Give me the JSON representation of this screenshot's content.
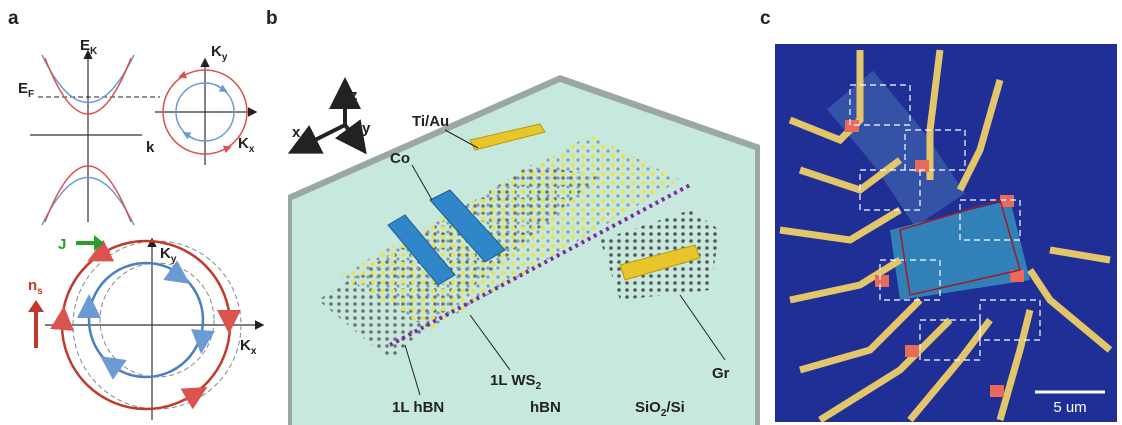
{
  "panel_a": {
    "label": "a",
    "dispersion": {
      "energy_axis": {
        "base": "E",
        "sub": "K"
      },
      "fermi": {
        "base": "E",
        "sub": "F"
      },
      "k_axis": "k"
    },
    "contour": {
      "ky": {
        "base": "K",
        "sub": "y"
      },
      "kx": {
        "base": "K",
        "sub": "x"
      }
    },
    "shifted": {
      "current": "J",
      "spin": {
        "base": "n",
        "sub": "s"
      },
      "ky": {
        "base": "K",
        "sub": "y"
      },
      "kx": {
        "base": "K",
        "sub": "x"
      }
    }
  },
  "panel_b": {
    "label": "b",
    "axes": {
      "x": "x",
      "y": "y",
      "z": "z"
    },
    "labels": {
      "tiau": "Ti/Au",
      "co": "Co",
      "ws2": {
        "base": "1L WS",
        "sub": "2"
      },
      "hbn1l": "1L hBN",
      "hbn": "hBN",
      "substrate": {
        "base": "SiO",
        "sub": "2",
        "rest": "/Si"
      },
      "gr": "Gr"
    }
  },
  "panel_c": {
    "label": "c",
    "scale_bar": "5 um"
  }
}
